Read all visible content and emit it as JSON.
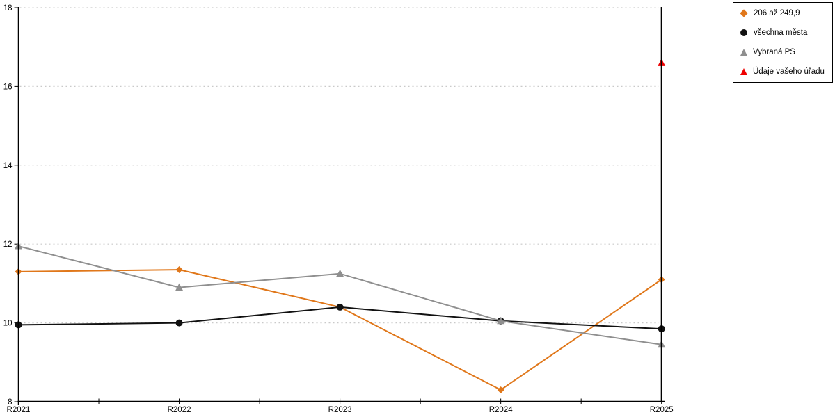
{
  "chart_data": {
    "type": "line",
    "title": "",
    "xlabel": "",
    "ylabel": "",
    "x_categories": [
      "R2021",
      "R2022",
      "R2023",
      "R2024",
      "R2025"
    ],
    "y_ticks": [
      8,
      10,
      12,
      14,
      16,
      18
    ],
    "ylim": [
      8,
      18
    ],
    "grid": "horizontal-dotted",
    "legend_position": "top-right",
    "gridline_color": "#C9C9C9",
    "axis_color": "#000000",
    "label_color": "#000000",
    "series": [
      {
        "name": "206 až 249,9",
        "marker": "diamond",
        "color": "#E0771A",
        "values": [
          11.3,
          11.35,
          10.4,
          8.3,
          11.1
        ]
      },
      {
        "name": "všechna města",
        "marker": "circle",
        "color": "#111111",
        "values": [
          9.95,
          10.0,
          10.4,
          10.05,
          9.85
        ]
      },
      {
        "name": "Vybraná PS",
        "marker": "triangle",
        "color": "#8F8F8F",
        "values": [
          11.95,
          10.9,
          11.25,
          10.05,
          9.45
        ]
      },
      {
        "name": "Údaje vašeho úřadu",
        "marker": "triangle",
        "color": "#EE0000",
        "values": [
          null,
          null,
          null,
          null,
          16.6
        ]
      }
    ]
  }
}
